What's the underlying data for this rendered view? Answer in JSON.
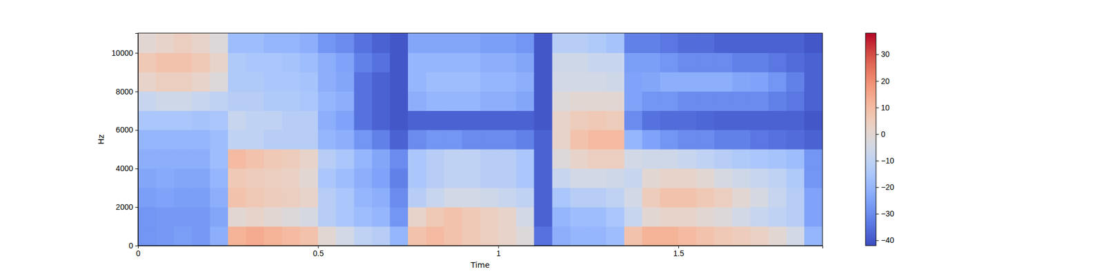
{
  "chart_data": {
    "type": "heatmap",
    "x_label": "Time",
    "y_label": "Hz",
    "x_edges": [
      0,
      0.05,
      0.1,
      0.15,
      0.2,
      0.25,
      0.3,
      0.35,
      0.4,
      0.45,
      0.5,
      0.55,
      0.6,
      0.65,
      0.7,
      0.75,
      0.8,
      0.85,
      0.9,
      0.95,
      1,
      1.05,
      1.1,
      1.15,
      1.2,
      1.25,
      1.3,
      1.35,
      1.4,
      1.45,
      1.5,
      1.55,
      1.6,
      1.65,
      1.7,
      1.75,
      1.8,
      1.85,
      1.9
    ],
    "y_edges": [
      0,
      1000,
      2000,
      3000,
      4000,
      5000,
      6000,
      7000,
      8000,
      9000,
      10000,
      11025
    ],
    "z": [
      [
        -28,
        -27,
        -26,
        -27,
        -22,
        12,
        14,
        12,
        10,
        8,
        0,
        -5,
        -10,
        -12,
        -20,
        8,
        10,
        8,
        6,
        4,
        2,
        -2,
        -35,
        -22,
        -20,
        -20,
        -18,
        8,
        12,
        12,
        10,
        8,
        6,
        5,
        3,
        0,
        -5,
        -20
      ],
      [
        -28,
        -27,
        -27,
        -27,
        -24,
        0,
        2,
        0,
        -2,
        -4,
        -12,
        -15,
        -18,
        -20,
        -28,
        2,
        6,
        8,
        6,
        4,
        2,
        -5,
        -38,
        -20,
        -18,
        -18,
        -15,
        -8,
        0,
        2,
        2,
        0,
        -2,
        -5,
        -8,
        -10,
        -12,
        -25
      ],
      [
        -26,
        -25,
        -26,
        -26,
        -22,
        8,
        6,
        5,
        4,
        2,
        -12,
        -15,
        -20,
        -22,
        -30,
        -12,
        -8,
        -5,
        -5,
        -6,
        -8,
        -10,
        -38,
        -15,
        -12,
        -12,
        -10,
        -5,
        5,
        8,
        8,
        6,
        4,
        0,
        -4,
        -8,
        -12,
        -25
      ],
      [
        -24,
        -23,
        -24,
        -24,
        -20,
        6,
        5,
        4,
        3,
        0,
        -15,
        -18,
        -22,
        -25,
        -32,
        -15,
        -12,
        -10,
        -10,
        -12,
        -12,
        -15,
        -38,
        -8,
        -5,
        -5,
        -6,
        -8,
        0,
        2,
        2,
        0,
        -4,
        -6,
        -8,
        -10,
        -14,
        -28
      ],
      [
        -22,
        -22,
        -22,
        -22,
        -18,
        10,
        8,
        6,
        5,
        2,
        -12,
        -15,
        -20,
        -24,
        -30,
        -15,
        -12,
        -10,
        -10,
        -12,
        -12,
        -15,
        -38,
        -2,
        2,
        4,
        4,
        -5,
        -6,
        -6,
        -8,
        -10,
        -12,
        -14,
        -15,
        -16,
        -18,
        -28
      ],
      [
        -20,
        -20,
        -20,
        -20,
        -18,
        -10,
        -10,
        -12,
        -12,
        -12,
        -20,
        -22,
        -28,
        -32,
        -38,
        -30,
        -28,
        -28,
        -30,
        -30,
        -30,
        -32,
        -38,
        2,
        8,
        10,
        10,
        -20,
        -25,
        -28,
        -30,
        -30,
        -32,
        -32,
        -34,
        -35,
        -36,
        -38
      ],
      [
        -15,
        -15,
        -15,
        -16,
        -15,
        -8,
        -10,
        -10,
        -12,
        -12,
        -22,
        -25,
        -35,
        -38,
        -40,
        -38,
        -38,
        -38,
        -38,
        -38,
        -38,
        -38,
        -40,
        2,
        5,
        6,
        5,
        -30,
        -35,
        -36,
        -36,
        -37,
        -38,
        -38,
        -38,
        -38,
        -38,
        -40
      ],
      [
        -8,
        -6,
        -6,
        -8,
        -10,
        -12,
        -12,
        -14,
        -14,
        -15,
        -20,
        -22,
        -35,
        -38,
        -40,
        -22,
        -20,
        -20,
        -20,
        -22,
        -22,
        -24,
        -40,
        -2,
        0,
        0,
        0,
        -25,
        -28,
        -28,
        -30,
        -30,
        -30,
        -30,
        -30,
        -32,
        -34,
        -38
      ],
      [
        2,
        4,
        4,
        2,
        -2,
        -14,
        -14,
        -15,
        -15,
        -16,
        -22,
        -24,
        -35,
        -38,
        -40,
        -20,
        -18,
        -18,
        -18,
        -20,
        -20,
        -22,
        -40,
        -5,
        -5,
        -5,
        -6,
        -25,
        -24,
        -22,
        -22,
        -22,
        -22,
        -24,
        -25,
        -28,
        -32,
        -38
      ],
      [
        6,
        8,
        8,
        6,
        2,
        -14,
        -15,
        -15,
        -16,
        -18,
        -22,
        -25,
        -32,
        -35,
        -40,
        -20,
        -20,
        -20,
        -20,
        -22,
        -22,
        -24,
        -40,
        -6,
        -6,
        -8,
        -8,
        -26,
        -26,
        -28,
        -30,
        -30,
        -30,
        -32,
        -32,
        -34,
        -36,
        -38
      ],
      [
        0,
        2,
        4,
        2,
        -2,
        -18,
        -18,
        -20,
        -20,
        -22,
        -28,
        -30,
        -35,
        -38,
        -40,
        -24,
        -24,
        -24,
        -24,
        -26,
        -26,
        -28,
        -40,
        -12,
        -12,
        -14,
        -16,
        -32,
        -32,
        -34,
        -36,
        -36,
        -38,
        -38,
        -38,
        -38,
        -38,
        -40
      ]
    ],
    "xlim": [
      0,
      1.9
    ],
    "xticks": [
      0,
      0.5,
      1,
      1.5
    ],
    "ylim": [
      0,
      11025
    ],
    "yticks": [
      0,
      2000,
      4000,
      6000,
      8000,
      10000
    ],
    "colorbar": {
      "range": [
        -42,
        38
      ],
      "ticks": [
        30,
        20,
        10,
        0,
        {
          "value": -10,
          "label": "−10"
        },
        {
          "value": -20,
          "label": "−20"
        },
        {
          "value": -30,
          "label": "−30"
        },
        {
          "value": -40,
          "label": "−40"
        }
      ]
    }
  }
}
